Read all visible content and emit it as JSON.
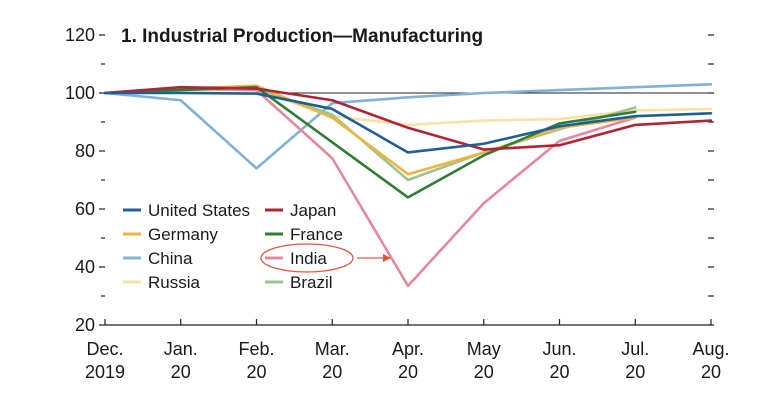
{
  "chart_data": {
    "type": "line",
    "title": "1. Industrial Production—Manufacturing",
    "xlabel": "",
    "ylabel": "",
    "categories": [
      [
        "Dec.",
        "2019"
      ],
      [
        "Jan.",
        "20"
      ],
      [
        "Feb.",
        "20"
      ],
      [
        "Mar.",
        "20"
      ],
      [
        "Apr.",
        "20"
      ],
      [
        "May",
        "20"
      ],
      [
        "Jun.",
        "20"
      ],
      [
        "Jul.",
        "20"
      ],
      [
        "Aug.",
        "20"
      ]
    ],
    "ylim": [
      20,
      120
    ],
    "yticks": [
      "20",
      "40",
      "60",
      "80",
      "100",
      "120"
    ],
    "reference_line": 100,
    "legend_position": "bottom-left",
    "series": [
      {
        "name": "United States",
        "color": "#1f5f97",
        "values": [
          100,
          100,
          99.8,
          94.5,
          79.5,
          82.5,
          88.5,
          92,
          93
        ]
      },
      {
        "name": "Japan",
        "color": "#b22335",
        "values": [
          100,
          102,
          101.5,
          97.5,
          88,
          80.5,
          82,
          89,
          90.5
        ]
      },
      {
        "name": "Germany",
        "color": "#f3b341",
        "values": [
          100,
          101.5,
          102.5,
          91.5,
          72,
          79.5,
          88,
          91.5,
          null
        ]
      },
      {
        "name": "France",
        "color": "#2f7d34",
        "values": [
          100,
          101,
          102,
          83,
          64,
          78.5,
          89.5,
          93.5,
          null
        ]
      },
      {
        "name": "China",
        "color": "#7eb2d6",
        "values": [
          100,
          97.5,
          74,
          96.5,
          98.5,
          100,
          101,
          102,
          103
        ]
      },
      {
        "name": "India",
        "color": "#e4899a",
        "values": [
          100,
          101.5,
          101,
          77.5,
          33.5,
          62,
          83.5,
          91.5,
          null
        ]
      },
      {
        "name": "Russia",
        "color": "#fae1a7",
        "values": [
          100,
          101,
          101,
          92,
          89,
          90.5,
          91,
          94,
          94.5
        ]
      },
      {
        "name": "Brazil",
        "color": "#9cc48f",
        "values": [
          100,
          101.5,
          101.5,
          92.5,
          70,
          79.5,
          87.5,
          95,
          null
        ]
      }
    ],
    "annotation": {
      "target_series": "India",
      "style": "red ellipse with arrow",
      "color": "#e5533d"
    }
  }
}
